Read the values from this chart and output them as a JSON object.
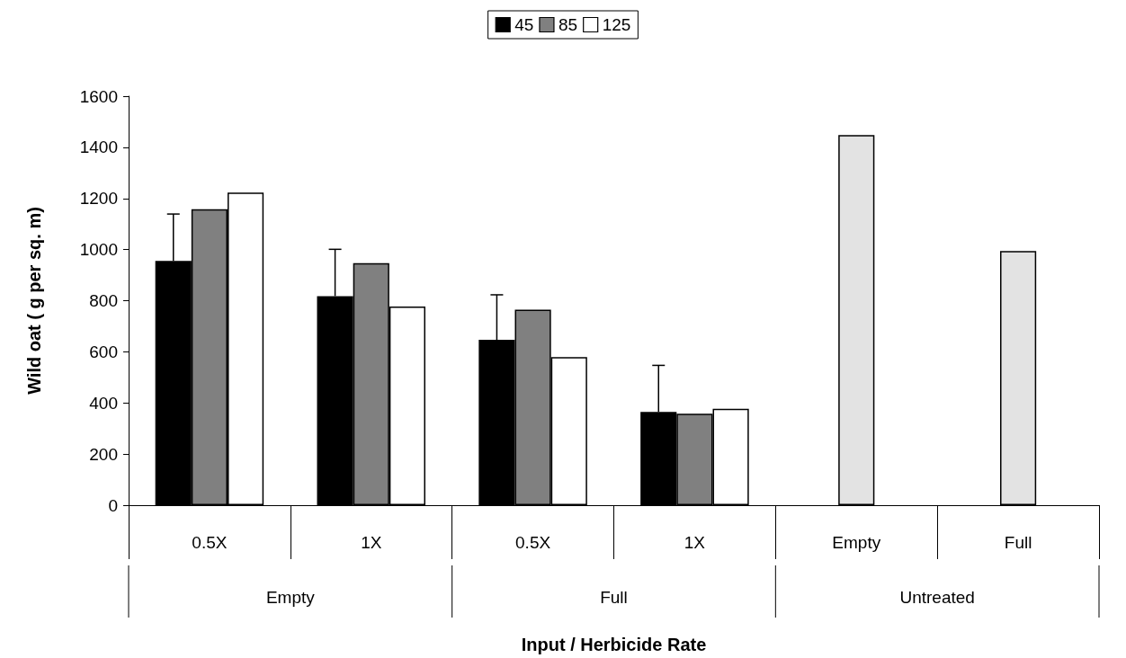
{
  "chart_data": {
    "type": "bar",
    "xlabel": "Input / Herbicide Rate",
    "ylabel": "Wild oat ( g per sq. m)",
    "categories": [
      "0.5X",
      "1X",
      "0.5X",
      "1X",
      "Empty",
      "Full"
    ],
    "series": [
      {
        "name": "45",
        "color": "#000000",
        "values": [
          956,
          818,
          647,
          365,
          null,
          null
        ],
        "errors": [
          [
            956,
            1139
          ],
          [
            818,
            1001
          ],
          [
            647,
            823
          ],
          [
            365,
            547
          ],
          null,
          null
        ]
      },
      {
        "name": "85",
        "color": "#808080",
        "colors": [
          "#808080",
          "#808080",
          "#808080",
          "#808080",
          "#e3e3e3",
          "#e3e3e3"
        ],
        "values": [
          1158,
          947,
          765,
          358,
          1448,
          994
        ]
      },
      {
        "name": "125",
        "color": "#ffffff",
        "values": [
          1223,
          777,
          579,
          377,
          null,
          null
        ]
      }
    ],
    "annotations": [
      "Empty",
      "Full",
      "Untreated"
    ],
    "ylim": [
      0,
      1600
    ],
    "yticks": [
      0,
      200,
      400,
      600,
      800,
      1000,
      1200,
      1400,
      1600
    ],
    "grid": false,
    "legend": "top"
  }
}
